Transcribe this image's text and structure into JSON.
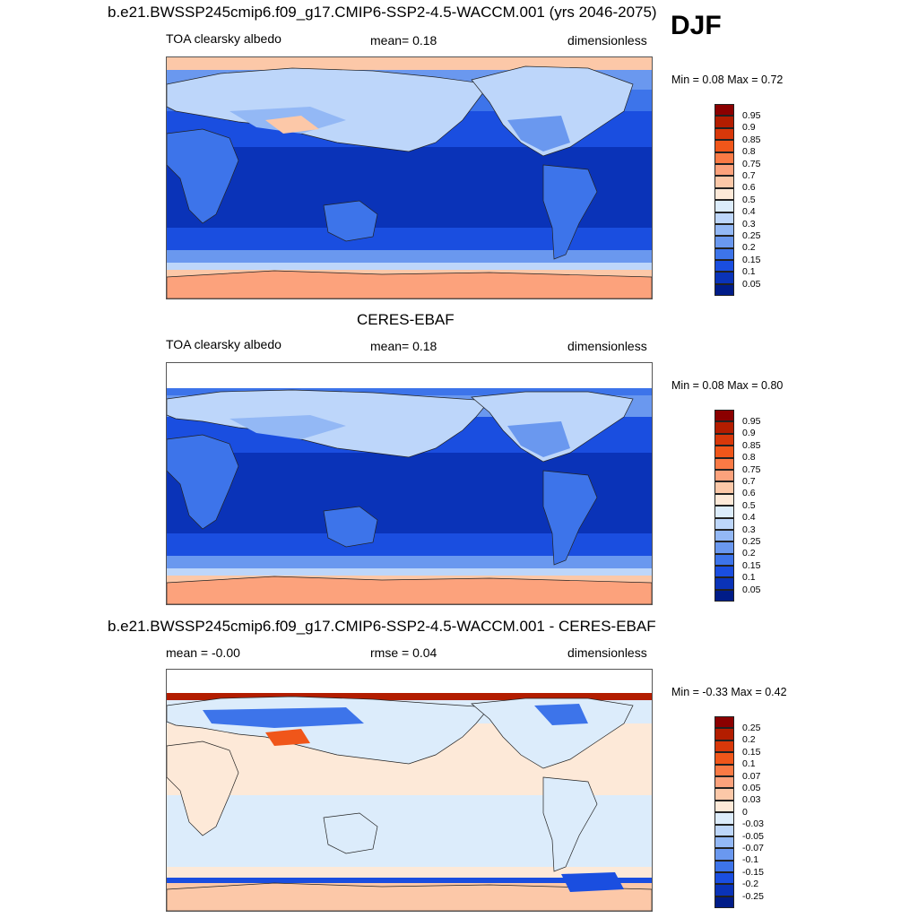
{
  "season": "DJF",
  "panels": [
    {
      "title": "b.e21.BWSSP245cmip6.f09_g17.CMIP6-SSP2-4.5-WACCM.001 (yrs 2046-2075)",
      "left": "TOA clearsky albedo",
      "center": "mean=   0.18",
      "right": "dimensionless",
      "minmax": "Min =   0.08 Max =   0.72",
      "colorbar": {
        "labels": [
          "0.95",
          "0.9",
          "0.85",
          "0.8",
          "0.75",
          "0.7",
          "0.6",
          "0.5",
          "0.4",
          "0.3",
          "0.25",
          "0.2",
          "0.15",
          "0.1",
          "0.05"
        ],
        "colors": [
          "#8b0000",
          "#b31d00",
          "#d8380a",
          "#f0561a",
          "#fa7a45",
          "#fca27c",
          "#fcc8a8",
          "#fde9d8",
          "#dcecfb",
          "#bdd6fa",
          "#93b8f5",
          "#6a98ef",
          "#3d74ea",
          "#1a4ee0",
          "#0a33b8",
          "#001c88"
        ]
      }
    },
    {
      "title": "CERES-EBAF",
      "left": "TOA clearsky albedo",
      "center": "mean=   0.18",
      "right": "dimensionless",
      "minmax": "Min =   0.08 Max =   0.80",
      "colorbar": {
        "labels": [
          "0.95",
          "0.9",
          "0.85",
          "0.8",
          "0.75",
          "0.7",
          "0.6",
          "0.5",
          "0.4",
          "0.3",
          "0.25",
          "0.2",
          "0.15",
          "0.1",
          "0.05"
        ],
        "colors": [
          "#8b0000",
          "#b31d00",
          "#d8380a",
          "#f0561a",
          "#fa7a45",
          "#fca27c",
          "#fcc8a8",
          "#fde9d8",
          "#dcecfb",
          "#bdd6fa",
          "#93b8f5",
          "#6a98ef",
          "#3d74ea",
          "#1a4ee0",
          "#0a33b8",
          "#001c88"
        ]
      }
    },
    {
      "title": "b.e21.BWSSP245cmip6.f09_g17.CMIP6-SSP2-4.5-WACCM.001 - CERES-EBAF",
      "left": "mean =  -0.00",
      "center": "rmse =   0.04",
      "right": "dimensionless",
      "minmax": "Min =  -0.33 Max =   0.42",
      "colorbar": {
        "labels": [
          "0.25",
          "0.2",
          "0.15",
          "0.1",
          "0.07",
          "0.05",
          "0.03",
          "0",
          "-0.03",
          "-0.05",
          "-0.07",
          "-0.1",
          "-0.15",
          "-0.2",
          "-0.25"
        ],
        "colors": [
          "#8b0000",
          "#b31d00",
          "#d8380a",
          "#f0561a",
          "#fa7a45",
          "#fca27c",
          "#fcc8a8",
          "#fde9d8",
          "#dcecfb",
          "#bdd6fa",
          "#93b8f5",
          "#6a98ef",
          "#3d74ea",
          "#1a4ee0",
          "#0a33b8",
          "#001c88"
        ]
      }
    }
  ]
}
